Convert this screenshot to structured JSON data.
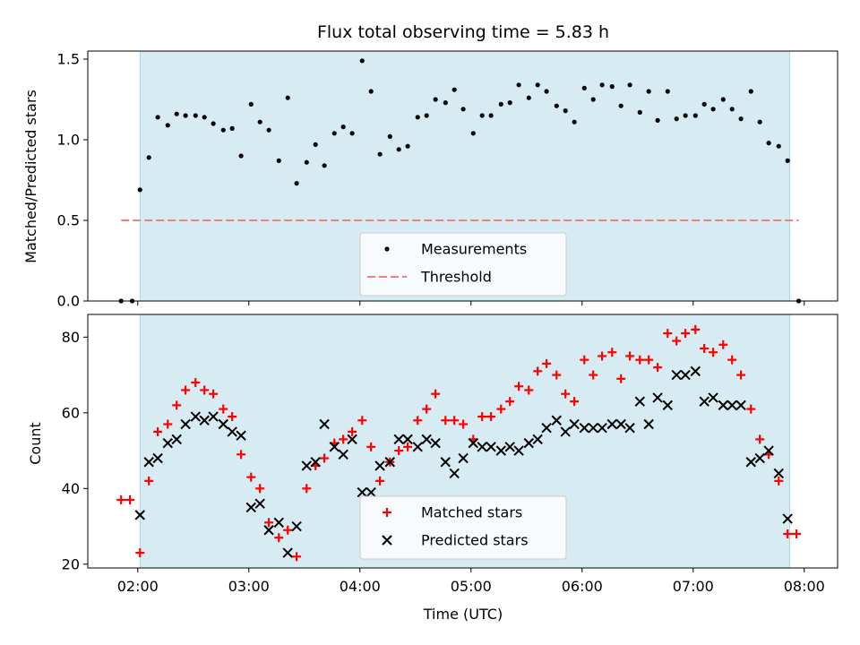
{
  "chart_data": [
    {
      "type": "scatter",
      "title": "Flux total observing time = 5.83 h",
      "xlabel": "",
      "ylabel": "Matched/Predicted stars",
      "ylim": [
        0,
        1.55
      ],
      "yticks": [
        "0.0",
        "0.5",
        "1.0",
        "1.5"
      ],
      "xlim_hours": [
        1.55,
        8.3
      ],
      "observing_window_hours": [
        2.02,
        7.87
      ],
      "legend_position": "bottom-center",
      "threshold": {
        "name": "Threshold",
        "value": 0.5,
        "x_range_hours": [
          1.85,
          7.95
        ],
        "color": "#f08080"
      },
      "series": [
        {
          "name": "Measurements",
          "color": "#000000",
          "points": [
            [
              1.85,
              0.0
            ],
            [
              1.95,
              0.0
            ],
            [
              2.02,
              0.69
            ],
            [
              2.1,
              0.89
            ],
            [
              2.18,
              1.14
            ],
            [
              2.27,
              1.09
            ],
            [
              2.35,
              1.16
            ],
            [
              2.43,
              1.15
            ],
            [
              2.52,
              1.15
            ],
            [
              2.6,
              1.14
            ],
            [
              2.68,
              1.1
            ],
            [
              2.77,
              1.06
            ],
            [
              2.85,
              1.07
            ],
            [
              2.93,
              0.9
            ],
            [
              3.02,
              1.22
            ],
            [
              3.1,
              1.11
            ],
            [
              3.18,
              1.06
            ],
            [
              3.27,
              0.87
            ],
            [
              3.35,
              1.26
            ],
            [
              3.43,
              0.73
            ],
            [
              3.52,
              0.86
            ],
            [
              3.6,
              0.97
            ],
            [
              3.68,
              0.84
            ],
            [
              3.77,
              1.04
            ],
            [
              3.85,
              1.08
            ],
            [
              3.93,
              1.04
            ],
            [
              4.02,
              1.49
            ],
            [
              4.1,
              1.3
            ],
            [
              4.18,
              0.91
            ],
            [
              4.27,
              1.02
            ],
            [
              4.35,
              0.94
            ],
            [
              4.43,
              0.96
            ],
            [
              4.52,
              1.14
            ],
            [
              4.6,
              1.15
            ],
            [
              4.68,
              1.25
            ],
            [
              4.77,
              1.23
            ],
            [
              4.85,
              1.31
            ],
            [
              4.93,
              1.19
            ],
            [
              5.02,
              1.04
            ],
            [
              5.1,
              1.15
            ],
            [
              5.18,
              1.15
            ],
            [
              5.27,
              1.22
            ],
            [
              5.35,
              1.23
            ],
            [
              5.43,
              1.34
            ],
            [
              5.52,
              1.26
            ],
            [
              5.6,
              1.34
            ],
            [
              5.68,
              1.3
            ],
            [
              5.77,
              1.21
            ],
            [
              5.85,
              1.18
            ],
            [
              5.93,
              1.11
            ],
            [
              6.02,
              1.32
            ],
            [
              6.1,
              1.25
            ],
            [
              6.18,
              1.34
            ],
            [
              6.27,
              1.33
            ],
            [
              6.35,
              1.21
            ],
            [
              6.43,
              1.34
            ],
            [
              6.52,
              1.17
            ],
            [
              6.6,
              1.3
            ],
            [
              6.68,
              1.12
            ],
            [
              6.77,
              1.3
            ],
            [
              6.85,
              1.13
            ],
            [
              6.93,
              1.15
            ],
            [
              7.02,
              1.15
            ],
            [
              7.1,
              1.22
            ],
            [
              7.18,
              1.19
            ],
            [
              7.27,
              1.25
            ],
            [
              7.35,
              1.19
            ],
            [
              7.43,
              1.13
            ],
            [
              7.52,
              1.3
            ],
            [
              7.6,
              1.11
            ],
            [
              7.68,
              0.98
            ],
            [
              7.77,
              0.96
            ],
            [
              7.85,
              0.87
            ],
            [
              7.95,
              0.0
            ]
          ]
        }
      ]
    },
    {
      "type": "scatter",
      "title": "",
      "xlabel": "Time (UTC)",
      "ylabel": "Count",
      "ylim": [
        19,
        86
      ],
      "yticks": [
        "20",
        "40",
        "60",
        "80"
      ],
      "xlim_hours": [
        1.55,
        8.3
      ],
      "xticks": [
        {
          "hour": 2,
          "label": "02:00"
        },
        {
          "hour": 3,
          "label": "03:00"
        },
        {
          "hour": 4,
          "label": "04:00"
        },
        {
          "hour": 5,
          "label": "05:00"
        },
        {
          "hour": 6,
          "label": "06:00"
        },
        {
          "hour": 7,
          "label": "07:00"
        },
        {
          "hour": 8,
          "label": "08:00"
        }
      ],
      "observing_window_hours": [
        2.02,
        7.87
      ],
      "legend_position": "bottom-center",
      "series": [
        {
          "name": "Matched stars",
          "marker": "plus",
          "color": "#ff0000",
          "points": [
            [
              1.85,
              37
            ],
            [
              1.93,
              37
            ],
            [
              2.02,
              23
            ],
            [
              2.1,
              42
            ],
            [
              2.18,
              55
            ],
            [
              2.27,
              57
            ],
            [
              2.35,
              62
            ],
            [
              2.43,
              66
            ],
            [
              2.52,
              68
            ],
            [
              2.6,
              66
            ],
            [
              2.68,
              65
            ],
            [
              2.77,
              61
            ],
            [
              2.85,
              59
            ],
            [
              2.93,
              49
            ],
            [
              3.02,
              43
            ],
            [
              3.1,
              40
            ],
            [
              3.18,
              31
            ],
            [
              3.27,
              27
            ],
            [
              3.35,
              29
            ],
            [
              3.43,
              22
            ],
            [
              3.52,
              40
            ],
            [
              3.6,
              46
            ],
            [
              3.68,
              48
            ],
            [
              3.77,
              52
            ],
            [
              3.85,
              53
            ],
            [
              3.93,
              55
            ],
            [
              4.02,
              58
            ],
            [
              4.1,
              51
            ],
            [
              4.18,
              42
            ],
            [
              4.27,
              47
            ],
            [
              4.35,
              50
            ],
            [
              4.43,
              51
            ],
            [
              4.52,
              58
            ],
            [
              4.6,
              61
            ],
            [
              4.68,
              65
            ],
            [
              4.77,
              58
            ],
            [
              4.85,
              58
            ],
            [
              4.93,
              57
            ],
            [
              5.02,
              53
            ],
            [
              5.1,
              59
            ],
            [
              5.18,
              59
            ],
            [
              5.27,
              61
            ],
            [
              5.35,
              63
            ],
            [
              5.43,
              67
            ],
            [
              5.52,
              66
            ],
            [
              5.6,
              71
            ],
            [
              5.68,
              73
            ],
            [
              5.77,
              70
            ],
            [
              5.85,
              65
            ],
            [
              5.93,
              63
            ],
            [
              6.02,
              74
            ],
            [
              6.1,
              70
            ],
            [
              6.18,
              75
            ],
            [
              6.27,
              76
            ],
            [
              6.35,
              69
            ],
            [
              6.43,
              75
            ],
            [
              6.52,
              74
            ],
            [
              6.6,
              74
            ],
            [
              6.68,
              72
            ],
            [
              6.77,
              81
            ],
            [
              6.85,
              79
            ],
            [
              6.93,
              81
            ],
            [
              7.02,
              82
            ],
            [
              7.1,
              77
            ],
            [
              7.18,
              76
            ],
            [
              7.27,
              78
            ],
            [
              7.35,
              74
            ],
            [
              7.43,
              70
            ],
            [
              7.52,
              61
            ],
            [
              7.6,
              53
            ],
            [
              7.68,
              49
            ],
            [
              7.77,
              42
            ],
            [
              7.85,
              28
            ],
            [
              7.93,
              28
            ]
          ]
        },
        {
          "name": "Predicted stars",
          "marker": "x",
          "color": "#000000",
          "points": [
            [
              2.02,
              33
            ],
            [
              2.1,
              47
            ],
            [
              2.18,
              48
            ],
            [
              2.27,
              52
            ],
            [
              2.35,
              53
            ],
            [
              2.43,
              57
            ],
            [
              2.52,
              59
            ],
            [
              2.6,
              58
            ],
            [
              2.68,
              59
            ],
            [
              2.77,
              57
            ],
            [
              2.85,
              55
            ],
            [
              2.93,
              54
            ],
            [
              3.02,
              35
            ],
            [
              3.1,
              36
            ],
            [
              3.18,
              29
            ],
            [
              3.27,
              31
            ],
            [
              3.35,
              23
            ],
            [
              3.43,
              30
            ],
            [
              3.52,
              46
            ],
            [
              3.6,
              47
            ],
            [
              3.68,
              57
            ],
            [
              3.77,
              51
            ],
            [
              3.85,
              49
            ],
            [
              3.93,
              53
            ],
            [
              4.02,
              39
            ],
            [
              4.1,
              39
            ],
            [
              4.18,
              46
            ],
            [
              4.27,
              47
            ],
            [
              4.35,
              53
            ],
            [
              4.43,
              53
            ],
            [
              4.52,
              51
            ],
            [
              4.6,
              53
            ],
            [
              4.68,
              52
            ],
            [
              4.77,
              47
            ],
            [
              4.85,
              44
            ],
            [
              4.93,
              48
            ],
            [
              5.02,
              52
            ],
            [
              5.1,
              51
            ],
            [
              5.18,
              51
            ],
            [
              5.27,
              50
            ],
            [
              5.35,
              51
            ],
            [
              5.43,
              50
            ],
            [
              5.52,
              52
            ],
            [
              5.6,
              53
            ],
            [
              5.68,
              56
            ],
            [
              5.77,
              58
            ],
            [
              5.85,
              55
            ],
            [
              5.93,
              57
            ],
            [
              6.02,
              56
            ],
            [
              6.1,
              56
            ],
            [
              6.18,
              56
            ],
            [
              6.27,
              57
            ],
            [
              6.35,
              57
            ],
            [
              6.43,
              56
            ],
            [
              6.52,
              63
            ],
            [
              6.6,
              57
            ],
            [
              6.68,
              64
            ],
            [
              6.77,
              62
            ],
            [
              6.85,
              70
            ],
            [
              6.93,
              70
            ],
            [
              7.02,
              71
            ],
            [
              7.1,
              63
            ],
            [
              7.18,
              64
            ],
            [
              7.27,
              62
            ],
            [
              7.35,
              62
            ],
            [
              7.43,
              62
            ],
            [
              7.52,
              47
            ],
            [
              7.6,
              48
            ],
            [
              7.68,
              50
            ],
            [
              7.77,
              44
            ],
            [
              7.85,
              32
            ]
          ]
        }
      ]
    }
  ]
}
